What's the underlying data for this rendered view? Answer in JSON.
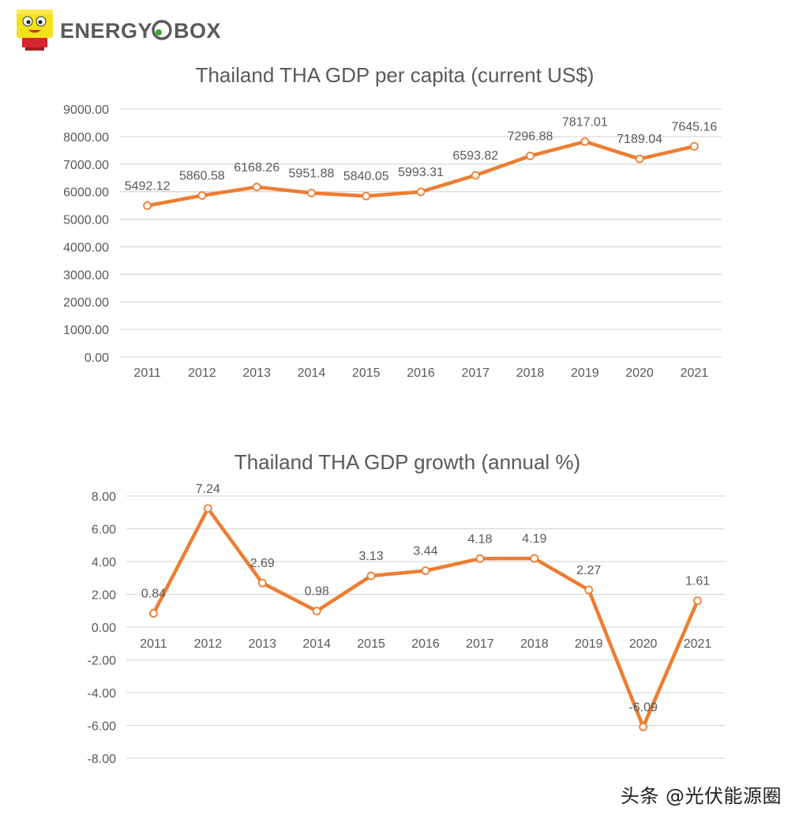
{
  "brand": {
    "name": "ENERGY BOX",
    "colors": {
      "box_yellow": "#f2e21a",
      "box_red": "#d7262d",
      "text": "#5a5a5a",
      "o_green": "#3aa935"
    }
  },
  "watermark": "头条 @光伏能源圈",
  "colors": {
    "series": "#ed7d31",
    "grid": "#d9d9d9",
    "text": "#595959",
    "title": "#595959"
  },
  "chart_data": [
    {
      "type": "line",
      "title": "Thailand THA GDP per capita (current US$)",
      "categories": [
        "2011",
        "2012",
        "2013",
        "2014",
        "2015",
        "2016",
        "2017",
        "2018",
        "2019",
        "2020",
        "2021"
      ],
      "series": [
        {
          "values": [
            5492.12,
            5860.58,
            6168.26,
            5951.88,
            5840.05,
            5993.31,
            6593.82,
            7296.88,
            7817.01,
            7189.04,
            7645.16
          ]
        }
      ],
      "data_labels": [
        "5492.12",
        "5860.58",
        "6168.26",
        "5951.88",
        "5840.05",
        "5993.31",
        "6593.82",
        "7296.88",
        "7817.01",
        "7189.04",
        "7645.16"
      ],
      "ylim": [
        0,
        9000
      ],
      "yticks": [
        "0.00",
        "1000.00",
        "2000.00",
        "3000.00",
        "4000.00",
        "5000.00",
        "6000.00",
        "7000.00",
        "8000.00",
        "9000.00"
      ],
      "xlabel": "",
      "ylabel": "",
      "grid": true,
      "legend": "none"
    },
    {
      "type": "line",
      "title": "Thailand THA GDP growth (annual %)",
      "categories": [
        "2011",
        "2012",
        "2013",
        "2014",
        "2015",
        "2016",
        "2017",
        "2018",
        "2019",
        "2020",
        "2021"
      ],
      "series": [
        {
          "values": [
            0.84,
            7.24,
            2.69,
            0.98,
            3.13,
            3.44,
            4.18,
            4.19,
            2.27,
            -6.09,
            1.61
          ]
        }
      ],
      "data_labels": [
        "0.84",
        "7.24",
        "2.69",
        "0.98",
        "3.13",
        "3.44",
        "4.18",
        "4.19",
        "2.27",
        "-6.09",
        "1.61"
      ],
      "ylim": [
        -8,
        8
      ],
      "yticks": [
        "-8.00",
        "-6.00",
        "-4.00",
        "-2.00",
        "0.00",
        "2.00",
        "4.00",
        "6.00",
        "8.00"
      ],
      "xlabel": "",
      "ylabel": "",
      "grid": true,
      "legend": "none"
    }
  ]
}
